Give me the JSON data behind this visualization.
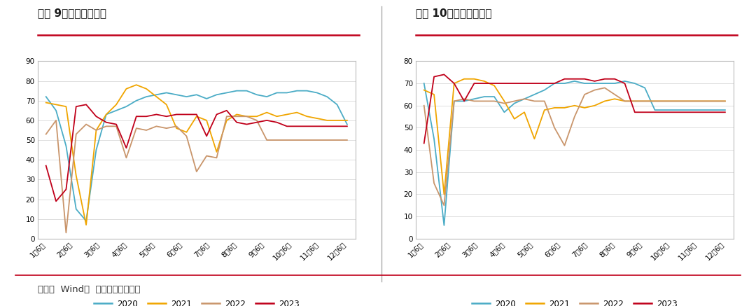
{
  "chart1_title": "图表 9：全钢胎开工率",
  "chart2_title": "图表 10：半钢胎开工率",
  "source_text": "来源：  Wind，  广金期货研究中心",
  "x_labels": [
    "1月6日",
    "2月6日",
    "3月6日",
    "4月6日",
    "5月6日",
    "6月6日",
    "7月6日",
    "8月6日",
    "9月6日",
    "10月6日",
    "11月6日",
    "12月6日"
  ],
  "chart1": {
    "ylim": [
      0,
      90
    ],
    "yticks": [
      0,
      10,
      20,
      30,
      40,
      50,
      60,
      70,
      80,
      90
    ],
    "series": {
      "2020": [
        72,
        65,
        47,
        15,
        9,
        45,
        63,
        65,
        67,
        70,
        72,
        73,
        74,
        73,
        72,
        73,
        71,
        73,
        74,
        75,
        75,
        73,
        72,
        74,
        74,
        75,
        75,
        74,
        72,
        68,
        58
      ],
      "2021": [
        69,
        68,
        67,
        32,
        7,
        55,
        63,
        68,
        76,
        78,
        76,
        72,
        68,
        56,
        54,
        62,
        60,
        44,
        60,
        63,
        62,
        62,
        64,
        62,
        63,
        64,
        62,
        61,
        60,
        60,
        60
      ],
      "2022": [
        53,
        60,
        3,
        53,
        58,
        55,
        57,
        57,
        41,
        56,
        55,
        57,
        56,
        57,
        52,
        34,
        42,
        41,
        62,
        62,
        62,
        60,
        50,
        50,
        50,
        50,
        50,
        50,
        50,
        50,
        50
      ],
      "2023": [
        37,
        19,
        25,
        67,
        68,
        62,
        59,
        58,
        46,
        62,
        62,
        63,
        62,
        63,
        63,
        63,
        52,
        63,
        65,
        59,
        58,
        59,
        60,
        59,
        57,
        57,
        57,
        57,
        57,
        57,
        57
      ]
    }
  },
  "chart2": {
    "ylim": [
      0,
      80
    ],
    "yticks": [
      0,
      10,
      20,
      30,
      40,
      50,
      60,
      70,
      80
    ],
    "series": {
      "2020": [
        70,
        45,
        6,
        62,
        62,
        63,
        64,
        64,
        57,
        61,
        63,
        65,
        67,
        70,
        70,
        71,
        70,
        70,
        70,
        70,
        71,
        70,
        68,
        58,
        58,
        58,
        58,
        58,
        58,
        58,
        58
      ],
      "2021": [
        67,
        65,
        20,
        70,
        72,
        72,
        71,
        69,
        62,
        54,
        57,
        45,
        58,
        59,
        59,
        60,
        59,
        60,
        62,
        63,
        62,
        62,
        62,
        62,
        62,
        62,
        62,
        62,
        62,
        62,
        62
      ],
      "2022": [
        60,
        25,
        15,
        62,
        63,
        62,
        62,
        62,
        61,
        62,
        63,
        62,
        62,
        50,
        42,
        55,
        65,
        67,
        68,
        65,
        62,
        62,
        62,
        62,
        62,
        62,
        62,
        62,
        62,
        62,
        62
      ],
      "2023": [
        43,
        73,
        74,
        70,
        62,
        70,
        70,
        70,
        70,
        70,
        70,
        70,
        70,
        70,
        72,
        72,
        72,
        71,
        72,
        72,
        70,
        57,
        57,
        57,
        57,
        57,
        57,
        57,
        57,
        57,
        57
      ]
    }
  },
  "colors": {
    "2020": "#4BACC6",
    "2021": "#F0A500",
    "2022": "#C9956B",
    "2023": "#C0001A"
  },
  "background_color": "#FFFFFF",
  "plot_bg_color": "#FFFFFF",
  "grid_color": "#DDDDDD",
  "title_color": "#1A1A1A",
  "red_line_color": "#C0001A",
  "sep_color": "#AAAAAA",
  "source_color": "#333333"
}
